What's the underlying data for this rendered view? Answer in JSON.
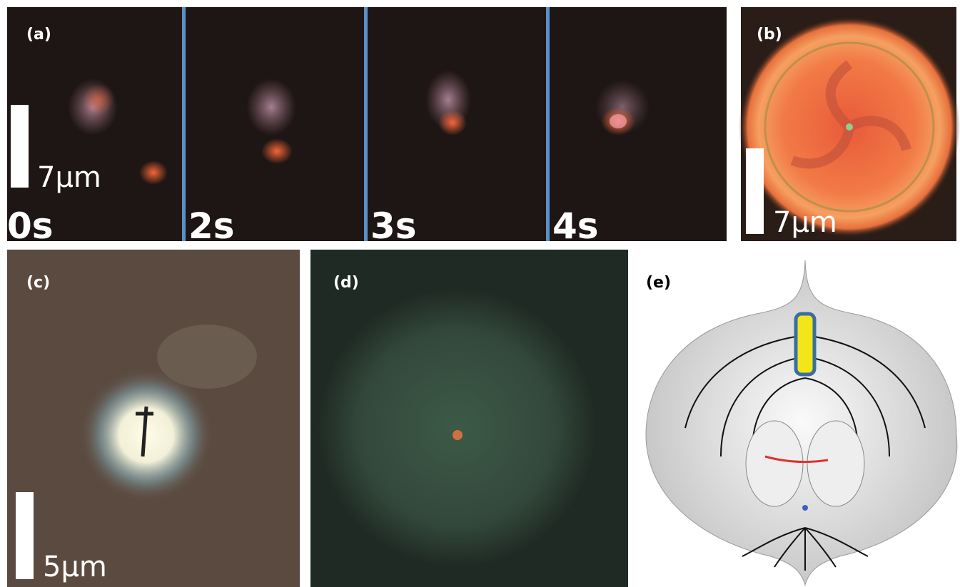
{
  "panel_a": {
    "label": "(a)",
    "scale_bar": "7μm",
    "frames": [
      "0s",
      "2s",
      "3s",
      "4s"
    ]
  },
  "panel_b": {
    "label": "(b)",
    "scale_bar": "7μm"
  },
  "panel_c": {
    "label": "(c)",
    "scale_bar": "5μm"
  },
  "panel_d": {
    "label": "(d)"
  },
  "panel_e": {
    "label": "(e)"
  }
}
